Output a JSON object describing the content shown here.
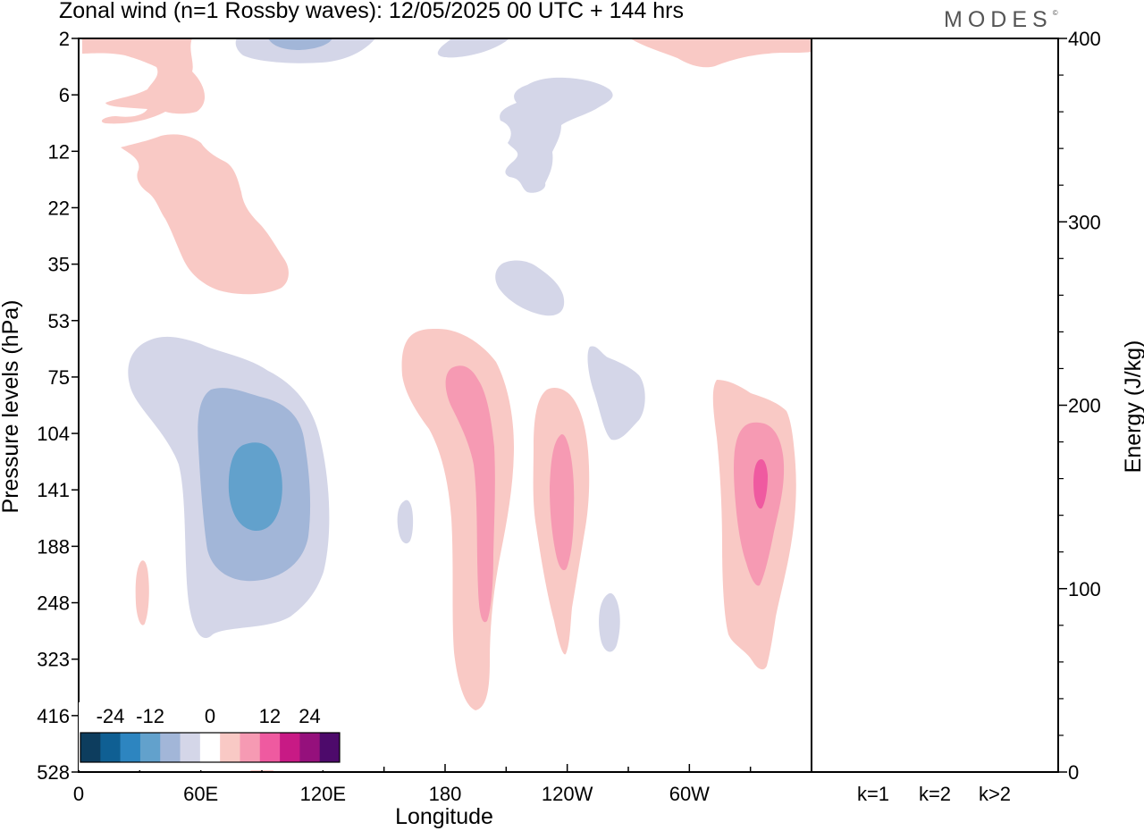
{
  "header": {
    "title": "Zonal wind (n=1 Rossby waves):  12/05/2025  00 UTC  + 144 hrs",
    "brand": "MODES",
    "brand_mark": "©"
  },
  "chart_data": [
    {
      "type": "heatmap",
      "title": "Zonal wind (n=1 Rossby waves):  12/05/2025  00 UTC  + 144 hrs",
      "xlabel": "Longitude",
      "ylabel": "Pressure levels (hPa)",
      "x_ticks": [
        "0",
        "60E",
        "120E",
        "180",
        "120W",
        "60W"
      ],
      "x_tick_values": [
        0,
        60,
        120,
        180,
        240,
        300
      ],
      "xlim": [
        0,
        360
      ],
      "y_ticks": [
        "2",
        "6",
        "12",
        "22",
        "35",
        "53",
        "75",
        "104",
        "141",
        "188",
        "248",
        "323",
        "416",
        "528"
      ],
      "y_scale": "pressure levels (top = 2 hPa, bottom = 528 hPa)",
      "colorbar": {
        "tick_labels": [
          "-24",
          "-12",
          "0",
          "12",
          "24"
        ],
        "levels": [
          -30,
          -24,
          -18,
          -12,
          -6,
          -3,
          0,
          3,
          6,
          12,
          18,
          24,
          30
        ],
        "colors": [
          "#0d3d5e",
          "#0f5f93",
          "#2d85c0",
          "#62a1cc",
          "#a2b6d8",
          "#d4d6e8",
          "#ffffff",
          "#f9c9c5",
          "#f69ab3",
          "#ef5aa0",
          "#c81a85",
          "#95107c",
          "#4d0a6b"
        ],
        "placement": "bottom-left"
      },
      "features": [
        {
          "kind": "negative",
          "lon": 80,
          "pressure": 141,
          "peak": -12
        },
        {
          "kind": "negative",
          "lon": 205,
          "pressure": 12,
          "peak": -3
        },
        {
          "kind": "negative",
          "lon": 215,
          "pressure": 40,
          "peak": -3
        },
        {
          "kind": "negative",
          "lon": 250,
          "pressure": 85,
          "peak": -3
        },
        {
          "kind": "negative",
          "lon": 105,
          "pressure": 2,
          "peak": -6
        },
        {
          "kind": "positive",
          "lon": 188,
          "pressure": 141,
          "peak": 6
        },
        {
          "kind": "positive",
          "lon": 232,
          "pressure": 141,
          "peak": 6
        },
        {
          "kind": "positive",
          "lon": 334,
          "pressure": 141,
          "peak": 12
        },
        {
          "kind": "positive",
          "lon": 60,
          "pressure": 22,
          "peak": 3
        }
      ]
    },
    {
      "type": "bar",
      "categories": [
        "k=1",
        "k=2",
        "k>2"
      ],
      "values": [
        0.5,
        0.5,
        0.5
      ],
      "ylabel": "Energy (J/kg)",
      "ylim": [
        0,
        400
      ],
      "y_ticks": [
        "0",
        "100",
        "200",
        "300",
        "400"
      ],
      "y_tick_values": [
        0,
        100,
        200,
        300,
        400
      ],
      "axis_side": "right"
    }
  ]
}
